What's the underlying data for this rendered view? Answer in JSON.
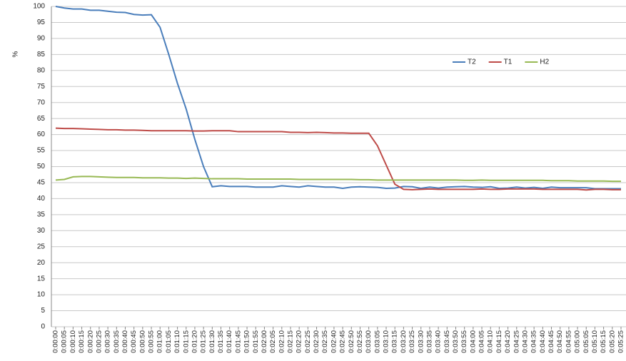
{
  "chart_data": {
    "type": "line",
    "y_label": "%",
    "categories": [
      "0:00:00",
      "0:00:05",
      "0:00:10",
      "0:00:15",
      "0:00:20",
      "0:00:25",
      "0:00:30",
      "0:00:35",
      "0:00:40",
      "0:00:45",
      "0:00:50",
      "0:00:55",
      "0:01:00",
      "0:01:05",
      "0:01:10",
      "0:01:15",
      "0:01:20",
      "0:01:25",
      "0:01:30",
      "0:01:35",
      "0:01:40",
      "0:01:45",
      "0:01:50",
      "0:01:55",
      "0:02:00",
      "0:02:05",
      "0:02:10",
      "0:02:15",
      "0:02:20",
      "0:02:25",
      "0:02:30",
      "0:02:35",
      "0:02:40",
      "0:02:45",
      "0:02:50",
      "0:02:55",
      "0:03:00",
      "0:03:05",
      "0:03:10",
      "0:03:15",
      "0:03:20",
      "0:03:25",
      "0:03:30",
      "0:03:35",
      "0:03:40",
      "0:03:45",
      "0:03:50",
      "0:03:55",
      "0:04:00",
      "0:04:05",
      "0:04:10",
      "0:04:15",
      "0:04:20",
      "0:04:25",
      "0:04:30",
      "0:04:35",
      "0:04:40",
      "0:04:45",
      "0:04:50",
      "0:04:55",
      "0:05:00",
      "0:05:05",
      "0:05:10",
      "0:05:15",
      "0:05:20",
      "0:05:25"
    ],
    "series": [
      {
        "name": "T2",
        "color": "#4a7ebb",
        "values": [
          100,
          99.5,
          99.2,
          99.2,
          98.8,
          98.8,
          98.5,
          98.2,
          98.1,
          97.5,
          97.3,
          97.4,
          93.5,
          85,
          76,
          68,
          58.5,
          50,
          43.7,
          44,
          43.8,
          43.8,
          43.8,
          43.6,
          43.6,
          43.6,
          44,
          43.8,
          43.6,
          44,
          43.8,
          43.6,
          43.6,
          43.2,
          43.6,
          43.7,
          43.6,
          43.5,
          43.2,
          43.3,
          43.8,
          43.7,
          43.2,
          43.6,
          43.3,
          43.6,
          43.7,
          43.8,
          43.6,
          43.5,
          43.7,
          43.2,
          43.3,
          43.6,
          43.3,
          43.5,
          43.2,
          43.6,
          43.4,
          43.4,
          43.4,
          43.4,
          43.1,
          43.1,
          43.1,
          43.1
        ]
      },
      {
        "name": "T1",
        "color": "#be4b48",
        "values": [
          62,
          61.9,
          61.9,
          61.8,
          61.7,
          61.6,
          61.5,
          61.5,
          61.4,
          61.4,
          61.3,
          61.2,
          61.2,
          61.2,
          61.2,
          61.2,
          61.1,
          61.1,
          61.2,
          61.2,
          61.2,
          60.9,
          60.9,
          60.9,
          60.9,
          60.9,
          60.9,
          60.7,
          60.7,
          60.6,
          60.7,
          60.6,
          60.5,
          60.5,
          60.4,
          60.4,
          60.4,
          56.5,
          50.5,
          44.5,
          42.9,
          42.8,
          42.9,
          43,
          42.9,
          42.9,
          42.9,
          42.9,
          42.9,
          43,
          42.9,
          42.9,
          43,
          43,
          43,
          43,
          42.9,
          42.9,
          42.9,
          42.9,
          42.9,
          42.7,
          42.9,
          42.9,
          42.8,
          42.8
        ]
      },
      {
        "name": "H2",
        "color": "#98b954",
        "values": [
          45.8,
          46,
          46.8,
          46.9,
          46.9,
          46.8,
          46.7,
          46.6,
          46.6,
          46.6,
          46.5,
          46.5,
          46.5,
          46.4,
          46.4,
          46.3,
          46.4,
          46.3,
          46.2,
          46.2,
          46.2,
          46.2,
          46.1,
          46.1,
          46.1,
          46.1,
          46.1,
          46.1,
          46,
          46,
          46,
          46,
          46,
          46,
          46,
          45.9,
          45.9,
          45.8,
          45.8,
          45.8,
          45.8,
          45.8,
          45.8,
          45.8,
          45.8,
          45.8,
          45.8,
          45.7,
          45.7,
          45.8,
          45.7,
          45.7,
          45.7,
          45.7,
          45.7,
          45.7,
          45.7,
          45.6,
          45.6,
          45.6,
          45.5,
          45.5,
          45.5,
          45.5,
          45.4,
          45.4
        ]
      }
    ],
    "ylim": [
      0,
      100
    ],
    "yticks": [
      0,
      5,
      10,
      15,
      20,
      25,
      30,
      35,
      40,
      45,
      50,
      55,
      60,
      65,
      70,
      75,
      80,
      85,
      90,
      95,
      100
    ],
    "grid": true,
    "legend": "upper right"
  }
}
